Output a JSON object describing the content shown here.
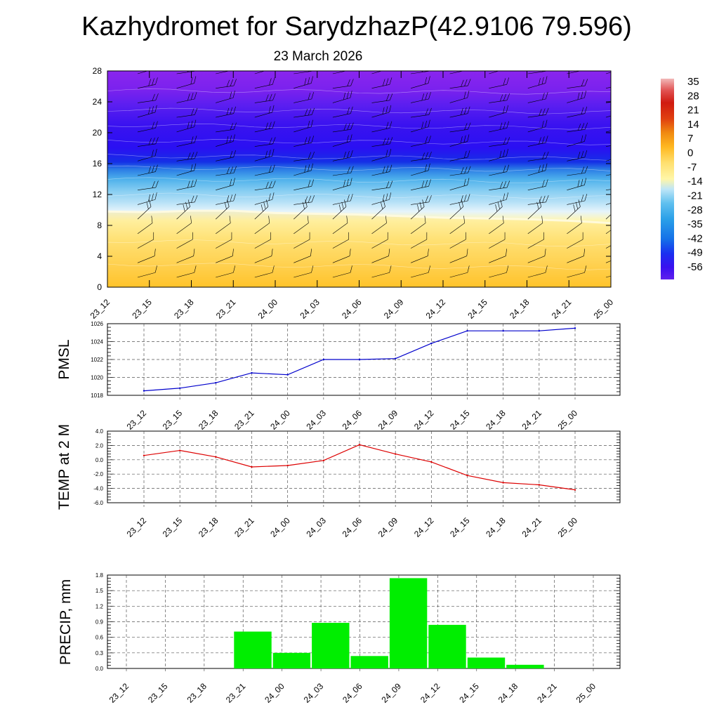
{
  "title": "Kazhydromet for SarydzhazP(42.9106 79.596)",
  "date": "23 March 2026",
  "colors": {
    "pmsl_line": "#0000cc",
    "temp_line": "#dd0000",
    "precip_bar": "#00ee00",
    "grid": "#555555",
    "axis": "#000000"
  },
  "chart_data": [
    {
      "type": "heatmap",
      "name": "temperature-cross-section",
      "xlabel": "",
      "ylabel": "",
      "x_tick_labels": [
        "23_12",
        "23_15",
        "23_18",
        "23_21",
        "24_00",
        "24_03",
        "24_06",
        "24_09",
        "24_12",
        "24_15",
        "24_18",
        "24_21",
        "25_00"
      ],
      "yticks": [
        0,
        4,
        8,
        12,
        16,
        20,
        24,
        28
      ],
      "ylim": [
        0,
        28
      ],
      "colorbar_labels": [
        "35",
        "28",
        "21",
        "14",
        "7",
        "0",
        "-7",
        "-14",
        "-21",
        "-28",
        "-35",
        "-42",
        "-49",
        "-56"
      ],
      "colorbar_range": [
        -63,
        42
      ],
      "freezing_level": [
        9.8,
        9.7,
        9.9,
        9.9,
        9.6,
        9.5,
        9.4,
        9.2,
        9.0,
        8.9,
        8.8,
        8.6,
        8.3
      ],
      "wind_barbs": true
    },
    {
      "type": "line",
      "name": "pmsl",
      "ylabel": "PMSL",
      "categories": [
        "23_12",
        "23_15",
        "23_18",
        "23_21",
        "24_00",
        "24_03",
        "24_06",
        "24_09",
        "24_12",
        "24_15",
        "24_18",
        "24_21",
        "25_00"
      ],
      "values": [
        1018.5,
        1018.8,
        1019.4,
        1020.5,
        1020.3,
        1022.0,
        1022.0,
        1022.1,
        1023.8,
        1025.2,
        1025.2,
        1025.2,
        1025.5
      ],
      "ylim": [
        1018,
        1026
      ],
      "yticks": [
        1018,
        1020,
        1022,
        1024,
        1026
      ],
      "ytick_labels": [
        "1018",
        "1020",
        "1022",
        "1024",
        "1026"
      ],
      "grid": true
    },
    {
      "type": "line",
      "name": "temp-2m",
      "ylabel": "TEMP at 2 M",
      "categories": [
        "23_12",
        "23_15",
        "23_18",
        "23_21",
        "24_00",
        "24_03",
        "24_06",
        "24_09",
        "24_12",
        "24_15",
        "24_18",
        "24_21",
        "25_00"
      ],
      "values": [
        0.6,
        1.3,
        0.4,
        -1.0,
        -0.8,
        -0.1,
        2.1,
        0.8,
        -0.3,
        -2.2,
        -3.2,
        -3.5,
        -4.2
      ],
      "ylim": [
        -6,
        4
      ],
      "yticks": [
        -6,
        -4,
        -2,
        0,
        2,
        4
      ],
      "ytick_labels": [
        "-6.0",
        "-4.0",
        "-2.0",
        "0.0",
        "2.0",
        "4.0"
      ],
      "grid": true
    },
    {
      "type": "bar",
      "name": "precip",
      "ylabel": "PRECIP, mm",
      "categories": [
        "23_12",
        "23_15",
        "23_18",
        "23_21",
        "24_00",
        "24_03",
        "24_06",
        "24_09",
        "24_12",
        "24_15",
        "24_18",
        "24_21",
        "25_00"
      ],
      "values": [
        0,
        0,
        0,
        0.71,
        0.3,
        0.88,
        0.24,
        1.74,
        0.84,
        0.21,
        0.07,
        0,
        0
      ],
      "ylim": [
        0,
        1.8
      ],
      "yticks": [
        0,
        0.3,
        0.6,
        0.9,
        1.2,
        1.5,
        1.8
      ],
      "ytick_labels": [
        "0.0",
        "0.3",
        "0.6",
        "0.9",
        "1.2",
        "1.5",
        "1.8"
      ],
      "grid": true
    }
  ]
}
